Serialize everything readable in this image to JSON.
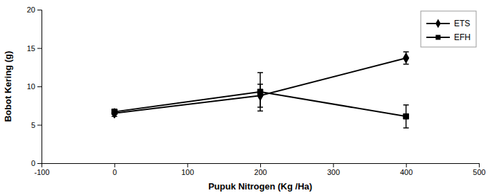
{
  "chart_data": {
    "type": "line",
    "x": [
      0,
      200,
      400
    ],
    "series": [
      {
        "name": "ETS",
        "color": "#000000",
        "marker": "diamond",
        "values": [
          6.5,
          8.8,
          13.7
        ],
        "errors": [
          0.4,
          1.5,
          0.8
        ]
      },
      {
        "name": "EFH",
        "color": "#000000",
        "marker": "square",
        "values": [
          6.7,
          9.3,
          6.1
        ],
        "errors": [
          0.3,
          2.5,
          1.5
        ]
      }
    ],
    "xlabel": "Pupuk Nitrogen (Kg /Ha)",
    "ylabel": "Bobot Kering (g)",
    "xlim": [
      -100,
      500
    ],
    "ylim": [
      0,
      20
    ],
    "xticks": [
      -100,
      0,
      100,
      200,
      300,
      400,
      500
    ],
    "yticks": [
      0,
      5,
      10,
      15,
      20
    ],
    "grid": false,
    "legend": "upper right"
  }
}
